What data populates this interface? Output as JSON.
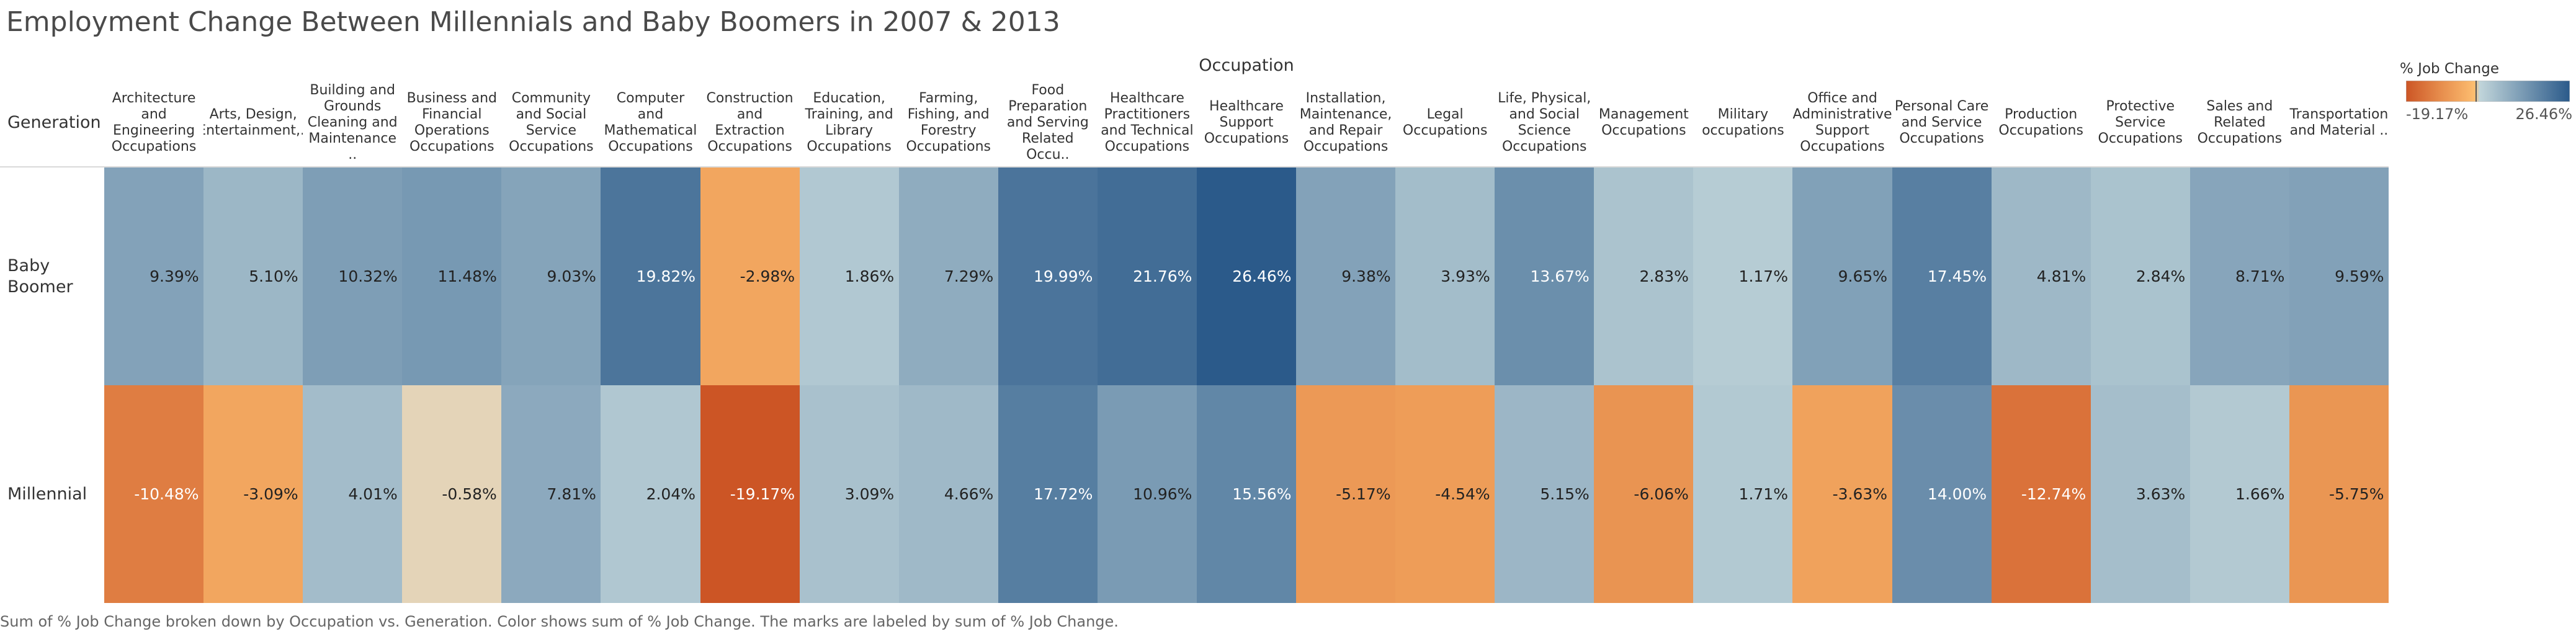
{
  "title": "Employment Change Between Millennials and Baby Boomers in 2007 & 2013",
  "footer": "Sum of % Job Change broken down by Occupation vs. Generation.  Color shows sum of % Job Change.  The marks are labeled by sum of % Job Change.",
  "legend": {
    "title": "% Job Change",
    "min_label": "-19.17%",
    "max_label": "26.46%"
  },
  "colors": {
    "neg_strong": "#cc5525",
    "neg_weak": "#fdbe70",
    "neutral": "#e4d4b8",
    "pos_weak": "#c1d5da",
    "pos_strong": "#2b5a8a"
  },
  "chart_data": {
    "type": "heatmap",
    "column_title": "Occupation",
    "row_title": "Generation",
    "columns": [
      "Architecture and Engineering Occupations",
      "Arts, Design, Entertainment,..",
      "Building and Grounds Cleaning and Maintenance ..",
      "Business and Financial Operations Occupations",
      "Community and Social Service Occupations",
      "Computer and Mathematical Occupations",
      "Construction and Extraction Occupations",
      "Education, Training, and Library Occupations",
      "Farming, Fishing, and Forestry Occupations",
      "Food Preparation and Serving Related Occu..",
      "Healthcare Practitioners and Technical Occupations",
      "Healthcare Support Occupations",
      "Installation, Maintenance, and Repair Occupations",
      "Legal Occupations",
      "Life, Physical, and Social Science Occupations",
      "Management Occupations",
      "Military occupations",
      "Office and Administrative Support Occupations",
      "Personal Care and Service Occupations",
      "Production Occupations",
      "Protective Service Occupations",
      "Sales and Related Occupations",
      "Transportation and Material .."
    ],
    "rows": [
      "Baby Boomer",
      "Millennial"
    ],
    "values": [
      [
        9.39,
        5.1,
        10.32,
        11.48,
        9.03,
        19.82,
        -2.98,
        1.86,
        7.29,
        19.99,
        21.76,
        26.46,
        9.38,
        3.93,
        13.67,
        2.83,
        1.17,
        9.65,
        17.45,
        4.81,
        2.84,
        8.71,
        9.59
      ],
      [
        -10.48,
        -3.09,
        4.01,
        -0.58,
        7.81,
        2.04,
        -19.17,
        3.09,
        4.66,
        17.72,
        10.96,
        15.56,
        -5.17,
        -4.54,
        5.15,
        -6.06,
        1.71,
        -3.63,
        14.0,
        -12.74,
        3.63,
        1.66,
        -5.75
      ]
    ],
    "labels": [
      [
        "9.39%",
        "5.10%",
        "10.32%",
        "11.48%",
        "9.03%",
        "19.82%",
        "-2.98%",
        "1.86%",
        "7.29%",
        "19.99%",
        "21.76%",
        "26.46%",
        "9.38%",
        "3.93%",
        "13.67%",
        "2.83%",
        "1.17%",
        "9.65%",
        "17.45%",
        "4.81%",
        "2.84%",
        "8.71%",
        "9.59%"
      ],
      [
        "-10.48%",
        "-3.09%",
        "4.01%",
        "-0.58%",
        "7.81%",
        "2.04%",
        "-19.17%",
        "3.09%",
        "4.66%",
        "17.72%",
        "10.96%",
        "15.56%",
        "-5.17%",
        "-4.54%",
        "5.15%",
        "-6.06%",
        "1.71%",
        "-3.63%",
        "14.00%",
        "-12.74%",
        "3.63%",
        "1.66%",
        "-5.75%"
      ]
    ],
    "color_range": [
      -19.17,
      26.46
    ]
  }
}
